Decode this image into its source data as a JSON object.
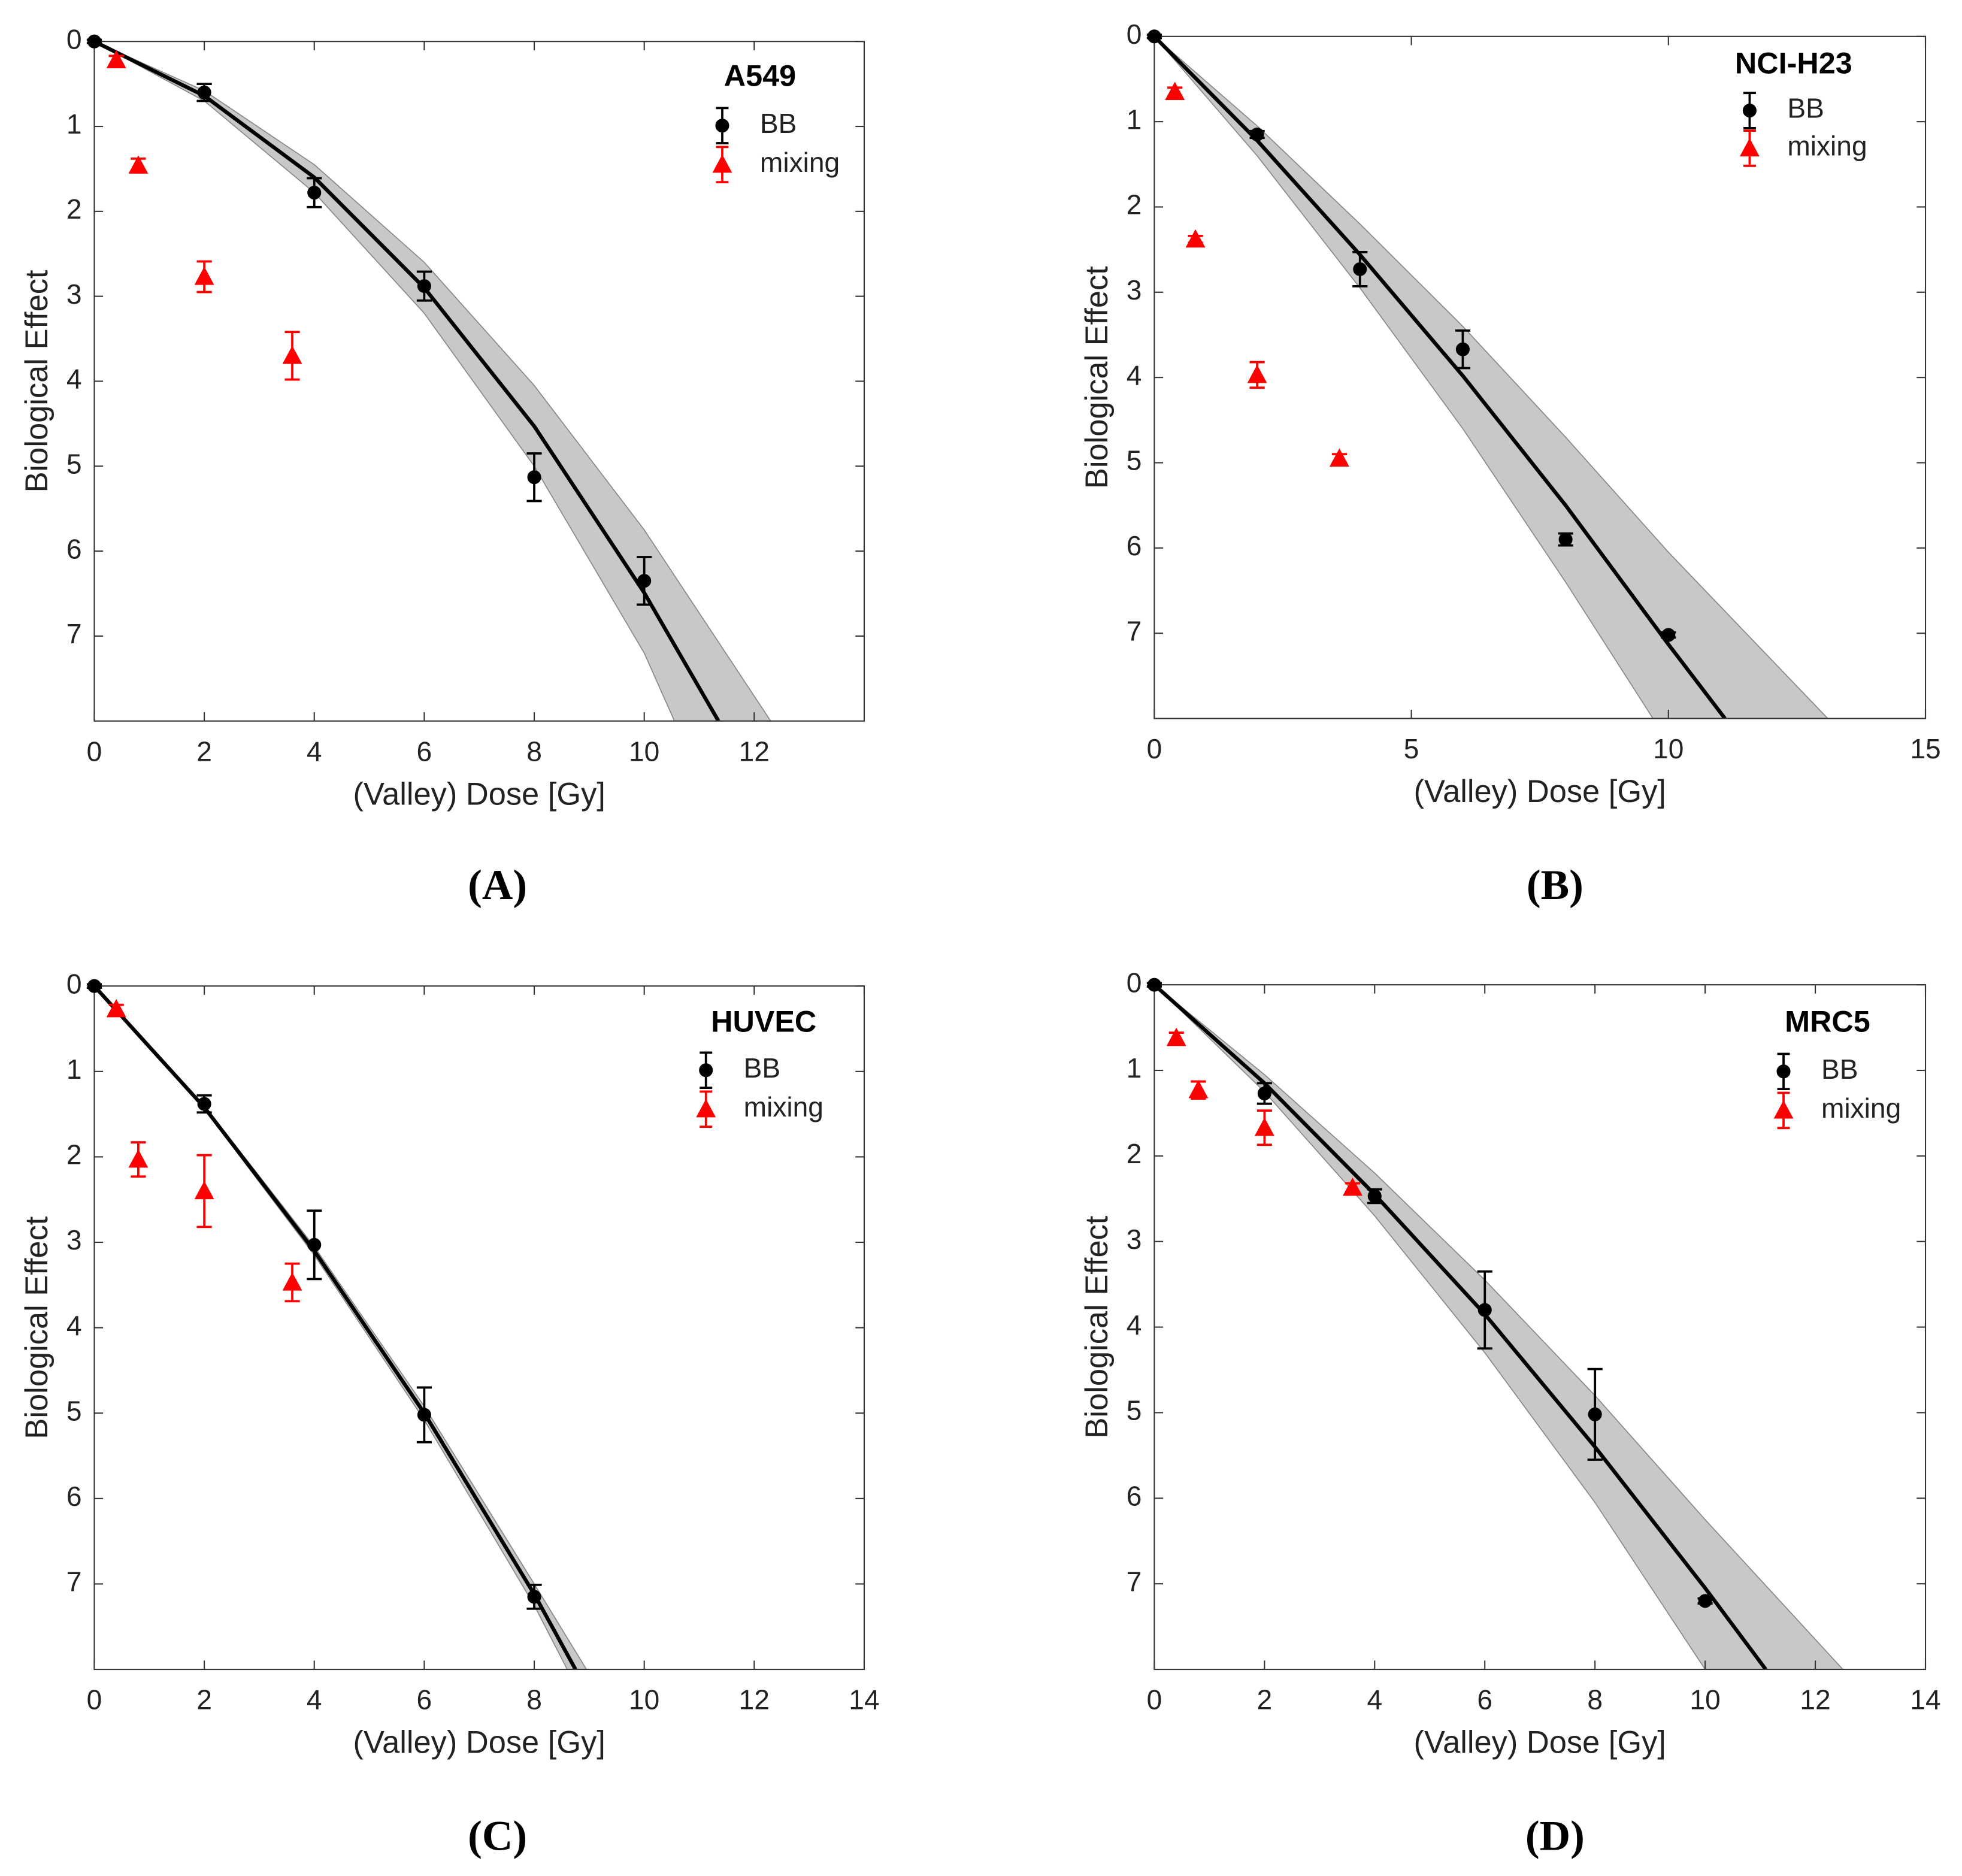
{
  "chart_data": [
    {
      "type": "scatter",
      "panel_label": "(A)",
      "legend_title": "A549",
      "x_label": "(Valley) Dose [Gy]",
      "y_label": "Biological Effect",
      "xlim": [
        0,
        14
      ],
      "xticks": [
        0,
        2,
        4,
        6,
        8,
        10,
        12
      ],
      "ylim": [
        0,
        8
      ],
      "yticks": [
        0,
        1,
        2,
        3,
        4,
        5,
        6,
        7
      ],
      "y_inverted": true,
      "series": [
        {
          "name": "BB",
          "color": "#000000",
          "marker": "circle",
          "x": [
            0,
            2,
            4,
            6,
            8,
            10
          ],
          "values": [
            0,
            0.6,
            1.78,
            2.88,
            5.13,
            6.35
          ],
          "errors": [
            0.02,
            0.1,
            0.17,
            0.17,
            0.28,
            0.28
          ]
        },
        {
          "name": "mixing",
          "color": "#ff0000",
          "marker": "triangle",
          "x": [
            0.4,
            0.8,
            2,
            3.6
          ],
          "values": [
            0.22,
            1.46,
            2.77,
            3.7
          ],
          "errors": [
            0.05,
            0.08,
            0.18,
            0.28
          ]
        }
      ],
      "fit": {
        "color": "#000000",
        "x": [
          0,
          2,
          4,
          6,
          8,
          10,
          11.35
        ],
        "y": [
          0,
          0.64,
          1.6,
          2.9,
          4.53,
          6.49,
          8
        ]
      },
      "band": {
        "color": "#c8c8c8",
        "x1": [
          0,
          2,
          4,
          6,
          8,
          10,
          12.3
        ],
        "y1": [
          0,
          0.58,
          1.45,
          2.6,
          4.05,
          5.75,
          8
        ],
        "x2": [
          0,
          2,
          4,
          6,
          8,
          10,
          10.55
        ],
        "y2": [
          0,
          0.7,
          1.78,
          3.2,
          5.0,
          7.2,
          8
        ]
      }
    },
    {
      "type": "scatter",
      "panel_label": "(B)",
      "legend_title": "NCI-H23",
      "x_label": "(Valley) Dose [Gy]",
      "y_label": "Biological Effect",
      "xlim": [
        0,
        15
      ],
      "xticks": [
        0,
        5,
        10,
        15
      ],
      "ylim": [
        0,
        8
      ],
      "yticks": [
        0,
        1,
        2,
        3,
        4,
        5,
        6,
        7
      ],
      "y_inverted": true,
      "series": [
        {
          "name": "BB",
          "color": "#000000",
          "marker": "circle",
          "x": [
            0,
            2,
            4,
            6,
            8,
            10
          ],
          "values": [
            0,
            1.15,
            2.73,
            3.67,
            5.9,
            7.02
          ],
          "errors": [
            0.02,
            0.04,
            0.2,
            0.22,
            0.07,
            0.03
          ]
        },
        {
          "name": "mixing",
          "color": "#ff0000",
          "marker": "triangle",
          "x": [
            0.4,
            0.8,
            2,
            3.6
          ],
          "values": [
            0.65,
            2.38,
            3.97,
            4.95
          ],
          "errors": [
            0.05,
            0.04,
            0.15,
            0.05
          ]
        }
      ],
      "fit": {
        "color": "#000000",
        "x": [
          0,
          2,
          4,
          6,
          8,
          10,
          11.1
        ],
        "y": [
          0,
          1.22,
          2.56,
          3.98,
          5.5,
          7.13,
          8
        ]
      },
      "band": {
        "color": "#c8c8c8",
        "x1": [
          0,
          2,
          4,
          6,
          8,
          10,
          13.1
        ],
        "y1": [
          0,
          1.05,
          2.2,
          3.4,
          4.7,
          6.05,
          8
        ],
        "x2": [
          0,
          2,
          4,
          6,
          8,
          9.7
        ],
        "y2": [
          0,
          1.4,
          2.95,
          4.6,
          6.4,
          8
        ]
      }
    },
    {
      "type": "scatter",
      "panel_label": "(C)",
      "legend_title": "HUVEC",
      "x_label": "(Valley) Dose [Gy]",
      "y_label": "Biological Effect",
      "xlim": [
        0,
        14
      ],
      "xticks": [
        0,
        2,
        4,
        6,
        8,
        10,
        12,
        14
      ],
      "ylim": [
        0,
        8
      ],
      "yticks": [
        0,
        1,
        2,
        3,
        4,
        5,
        6,
        7
      ],
      "y_inverted": true,
      "series": [
        {
          "name": "BB",
          "color": "#000000",
          "marker": "circle",
          "x": [
            0,
            2,
            4,
            6,
            8
          ],
          "values": [
            0,
            1.38,
            3.03,
            5.02,
            7.15
          ],
          "errors": [
            0.02,
            0.1,
            0.4,
            0.32,
            0.14
          ]
        },
        {
          "name": "mixing",
          "color": "#ff0000",
          "marker": "triangle",
          "x": [
            0.4,
            0.8,
            2,
            3.6
          ],
          "values": [
            0.27,
            2.03,
            2.4,
            3.47
          ],
          "errors": [
            0.05,
            0.2,
            0.42,
            0.22
          ]
        }
      ],
      "fit": {
        "color": "#000000",
        "x": [
          0,
          2,
          4,
          6,
          8,
          8.75
        ],
        "y": [
          0,
          1.42,
          3.1,
          5.0,
          7.12,
          8
        ]
      },
      "band": {
        "color": "#c8c8c8",
        "x1": [
          0,
          2,
          4,
          6,
          8,
          8.95
        ],
        "y1": [
          0,
          1.4,
          3.05,
          4.92,
          7.0,
          8
        ],
        "x2": [
          0,
          2,
          4,
          6,
          8,
          8.6
        ],
        "y2": [
          0,
          1.44,
          3.15,
          5.08,
          7.25,
          8
        ]
      }
    },
    {
      "type": "scatter",
      "panel_label": "(D)",
      "legend_title": "MRC5",
      "x_label": "(Valley) Dose [Gy]",
      "y_label": "Biological Effect",
      "xlim": [
        0,
        14
      ],
      "xticks": [
        0,
        2,
        4,
        6,
        8,
        10,
        12,
        14
      ],
      "ylim": [
        0,
        8
      ],
      "yticks": [
        0,
        1,
        2,
        3,
        4,
        5,
        6,
        7
      ],
      "y_inverted": true,
      "series": [
        {
          "name": "BB",
          "color": "#000000",
          "marker": "circle",
          "x": [
            0,
            2,
            4,
            6,
            8,
            10
          ],
          "values": [
            0,
            1.27,
            2.47,
            3.8,
            5.02,
            7.2
          ],
          "errors": [
            0.02,
            0.12,
            0.08,
            0.45,
            0.53,
            0.03
          ]
        },
        {
          "name": "mixing",
          "color": "#ff0000",
          "marker": "triangle",
          "x": [
            0.4,
            0.8,
            2,
            3.6
          ],
          "values": [
            0.62,
            1.23,
            1.67,
            2.37
          ],
          "errors": [
            0.06,
            0.1,
            0.2,
            0.05
          ]
        }
      ],
      "fit": {
        "color": "#000000",
        "x": [
          0,
          2,
          4,
          6,
          8,
          10,
          11.1
        ],
        "y": [
          0,
          1.15,
          2.45,
          3.85,
          5.4,
          7.05,
          8
        ]
      },
      "band": {
        "color": "#c8c8c8",
        "x1": [
          0,
          2,
          4,
          6,
          8,
          10,
          12.5
        ],
        "y1": [
          0,
          1.05,
          2.2,
          3.45,
          4.8,
          6.25,
          8
        ],
        "x2": [
          0,
          2,
          4,
          6,
          8,
          10
        ],
        "y2": [
          0,
          1.25,
          2.7,
          4.3,
          6.05,
          8
        ]
      }
    }
  ]
}
